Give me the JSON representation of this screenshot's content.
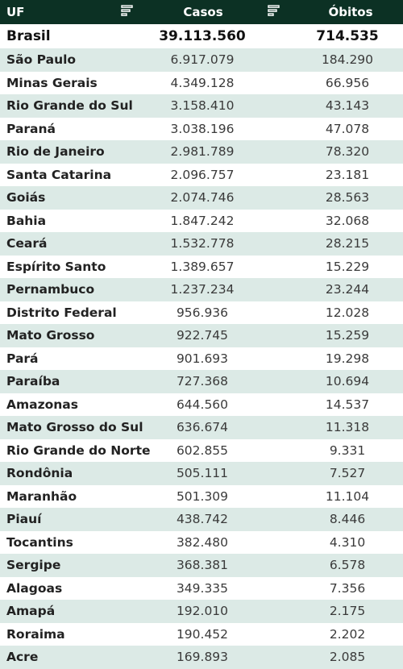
{
  "header": {
    "uf": "UF",
    "casos": "Casos",
    "obitos": "Óbitos"
  },
  "colors": {
    "header_bg": "#0c3124",
    "stripe": "#dceae6"
  },
  "icons": {
    "sort": "sort-filter-icon"
  },
  "total": {
    "name": "Brasil",
    "casos": "39.113.560",
    "obitos": "714.535"
  },
  "rows": [
    {
      "name": "São Paulo",
      "casos": "6.917.079",
      "obitos": "184.290"
    },
    {
      "name": "Minas Gerais",
      "casos": "4.349.128",
      "obitos": "66.956"
    },
    {
      "name": "Rio Grande do Sul",
      "casos": "3.158.410",
      "obitos": "43.143"
    },
    {
      "name": "Paraná",
      "casos": "3.038.196",
      "obitos": "47.078"
    },
    {
      "name": "Rio de Janeiro",
      "casos": "2.981.789",
      "obitos": "78.320"
    },
    {
      "name": "Santa Catarina",
      "casos": "2.096.757",
      "obitos": "23.181"
    },
    {
      "name": "Goiás",
      "casos": "2.074.746",
      "obitos": "28.563"
    },
    {
      "name": "Bahia",
      "casos": "1.847.242",
      "obitos": "32.068"
    },
    {
      "name": "Ceará",
      "casos": "1.532.778",
      "obitos": "28.215"
    },
    {
      "name": "Espírito Santo",
      "casos": "1.389.657",
      "obitos": "15.229"
    },
    {
      "name": "Pernambuco",
      "casos": "1.237.234",
      "obitos": "23.244"
    },
    {
      "name": "Distrito Federal",
      "casos": "956.936",
      "obitos": "12.028"
    },
    {
      "name": "Mato Grosso",
      "casos": "922.745",
      "obitos": "15.259"
    },
    {
      "name": "Pará",
      "casos": "901.693",
      "obitos": "19.298"
    },
    {
      "name": "Paraíba",
      "casos": "727.368",
      "obitos": "10.694"
    },
    {
      "name": "Amazonas",
      "casos": "644.560",
      "obitos": "14.537"
    },
    {
      "name": "Mato Grosso do Sul",
      "casos": "636.674",
      "obitos": "11.318"
    },
    {
      "name": "Rio Grande do Norte",
      "casos": "602.855",
      "obitos": "9.331"
    },
    {
      "name": "Rondônia",
      "casos": "505.111",
      "obitos": "7.527"
    },
    {
      "name": "Maranhão",
      "casos": "501.309",
      "obitos": "11.104"
    },
    {
      "name": "Piauí",
      "casos": "438.742",
      "obitos": "8.446"
    },
    {
      "name": "Tocantins",
      "casos": "382.480",
      "obitos": "4.310"
    },
    {
      "name": "Sergipe",
      "casos": "368.381",
      "obitos": "6.578"
    },
    {
      "name": "Alagoas",
      "casos": "349.335",
      "obitos": "7.356"
    },
    {
      "name": "Amapá",
      "casos": "192.010",
      "obitos": "2.175"
    },
    {
      "name": "Roraima",
      "casos": "190.452",
      "obitos": "2.202"
    },
    {
      "name": "Acre",
      "casos": "169.893",
      "obitos": "2.085"
    }
  ]
}
